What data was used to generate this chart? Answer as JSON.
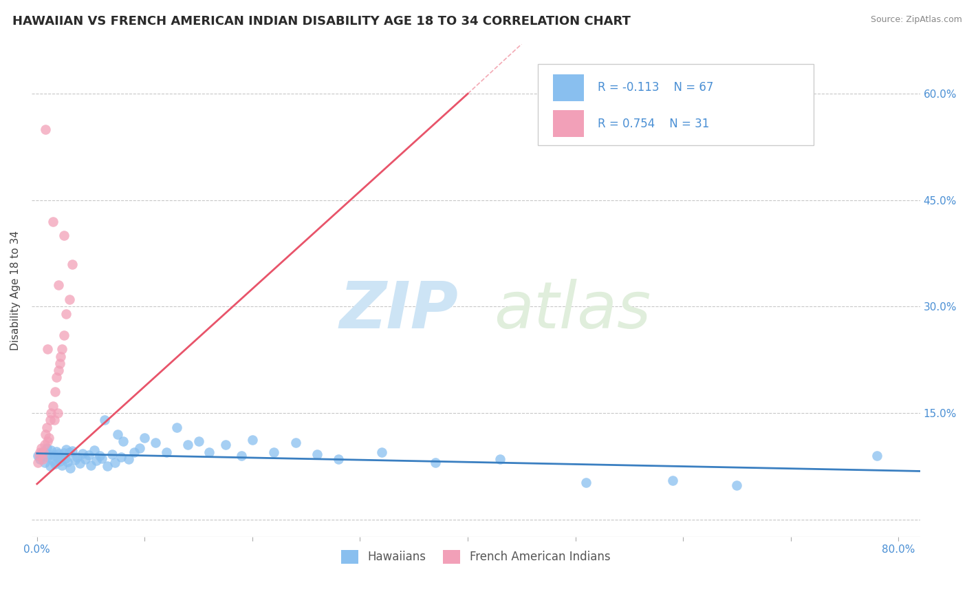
{
  "title": "HAWAIIAN VS FRENCH AMERICAN INDIAN DISABILITY AGE 18 TO 34 CORRELATION CHART",
  "source": "Source: ZipAtlas.com",
  "ylabel": "Disability Age 18 to 34",
  "xlim": [
    -0.005,
    0.82
  ],
  "ylim": [
    -0.025,
    0.67
  ],
  "xticks": [
    0.0,
    0.1,
    0.2,
    0.3,
    0.4,
    0.5,
    0.6,
    0.7,
    0.8
  ],
  "xticklabels": [
    "0.0%",
    "",
    "",
    "",
    "",
    "",
    "",
    "",
    "80.0%"
  ],
  "yticks": [
    0.0,
    0.15,
    0.3,
    0.45,
    0.6
  ],
  "yticklabels_right": [
    "",
    "15.0%",
    "30.0%",
    "45.0%",
    "60.0%"
  ],
  "hawaiian_color": "#89bfef",
  "french_color": "#f2a0b8",
  "trend_hawaiian_color": "#3a7fc1",
  "trend_french_color": "#e8546a",
  "watermark_zip": "ZIP",
  "watermark_atlas": "atlas",
  "watermark_color": "#cde4f5",
  "R_hawaiian": -0.113,
  "N_hawaiian": 67,
  "R_french": 0.754,
  "N_french": 31,
  "hawaiian_x": [
    0.001,
    0.003,
    0.005,
    0.007,
    0.009,
    0.01,
    0.011,
    0.012,
    0.013,
    0.015,
    0.016,
    0.017,
    0.018,
    0.019,
    0.02,
    0.021,
    0.022,
    0.023,
    0.025,
    0.026,
    0.027,
    0.028,
    0.03,
    0.031,
    0.033,
    0.035,
    0.037,
    0.04,
    0.042,
    0.045,
    0.048,
    0.05,
    0.053,
    0.055,
    0.058,
    0.06,
    0.063,
    0.065,
    0.07,
    0.072,
    0.075,
    0.078,
    0.08,
    0.085,
    0.09,
    0.095,
    0.1,
    0.11,
    0.12,
    0.13,
    0.14,
    0.15,
    0.16,
    0.175,
    0.19,
    0.2,
    0.22,
    0.24,
    0.26,
    0.28,
    0.32,
    0.37,
    0.43,
    0.51,
    0.59,
    0.65,
    0.78
  ],
  "hawaiian_y": [
    0.09,
    0.085,
    0.095,
    0.08,
    0.1,
    0.088,
    0.092,
    0.075,
    0.098,
    0.083,
    0.091,
    0.078,
    0.096,
    0.087,
    0.093,
    0.082,
    0.089,
    0.076,
    0.094,
    0.086,
    0.099,
    0.081,
    0.095,
    0.072,
    0.097,
    0.084,
    0.088,
    0.079,
    0.093,
    0.085,
    0.091,
    0.076,
    0.098,
    0.083,
    0.09,
    0.086,
    0.14,
    0.075,
    0.092,
    0.08,
    0.12,
    0.088,
    0.11,
    0.085,
    0.095,
    0.1,
    0.115,
    0.108,
    0.095,
    0.13,
    0.105,
    0.11,
    0.095,
    0.105,
    0.09,
    0.112,
    0.095,
    0.108,
    0.092,
    0.085,
    0.095,
    0.08,
    0.085,
    0.052,
    0.055,
    0.048,
    0.09
  ],
  "french_x": [
    0.001,
    0.002,
    0.003,
    0.004,
    0.005,
    0.006,
    0.007,
    0.008,
    0.009,
    0.01,
    0.011,
    0.012,
    0.013,
    0.015,
    0.016,
    0.017,
    0.018,
    0.019,
    0.02,
    0.021,
    0.022,
    0.023,
    0.025,
    0.027,
    0.03,
    0.033,
    0.02,
    0.025,
    0.01,
    0.015,
    0.008
  ],
  "french_y": [
    0.08,
    0.09,
    0.095,
    0.1,
    0.085,
    0.095,
    0.105,
    0.12,
    0.13,
    0.11,
    0.115,
    0.14,
    0.15,
    0.16,
    0.14,
    0.18,
    0.2,
    0.15,
    0.21,
    0.22,
    0.23,
    0.24,
    0.26,
    0.29,
    0.31,
    0.36,
    0.33,
    0.4,
    0.24,
    0.42,
    0.55
  ],
  "french_trend_x0": 0.0,
  "french_trend_x1": 0.4,
  "french_trend_y0": 0.05,
  "french_trend_y1": 0.6,
  "hawaiian_trend_x0": 0.0,
  "hawaiian_trend_x1": 0.82,
  "hawaiian_trend_y0": 0.093,
  "hawaiian_trend_y1": 0.068
}
